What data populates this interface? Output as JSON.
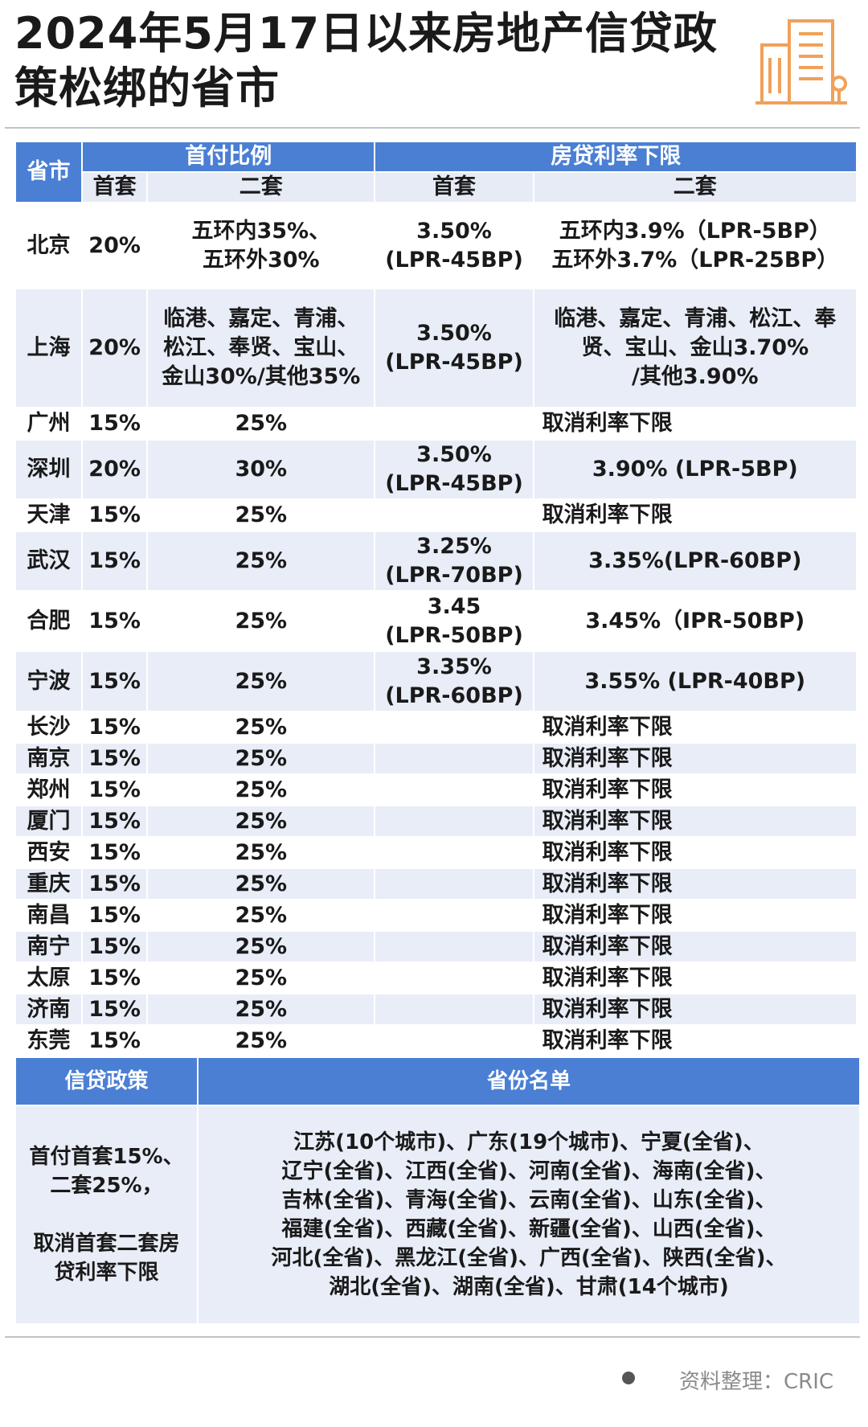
{
  "header": {
    "title": "2024年5月17日以来房地产信贷政策松绑的省市"
  },
  "table": {
    "headers": {
      "city": "省市",
      "down_payment": "首付比例",
      "rate_floor": "房贷利率下限",
      "first": "首套",
      "second": "二套",
      "first_rate": "首套",
      "second_rate": "二套"
    },
    "rows": [
      {
        "city": "北京",
        "dp1": "20%",
        "dp2": "五环内35%、\n五环外30%",
        "rate1": "3.50%\n(LPR-45BP)",
        "rate2": "五环内3.9%（LPR-5BP）\n五环外3.7%（LPR-25BP）"
      },
      {
        "city": "上海",
        "dp1": "20%",
        "dp2": "临港、嘉定、青浦、\n松江、奉贤、宝山、\n金山30%/其他35%",
        "rate1": "3.50%\n(LPR-45BP)",
        "rate2": "临港、嘉定、青浦、松江、奉\n贤、宝山、金山3.70%\n/其他3.90%"
      },
      {
        "city": "广州",
        "dp1": "15%",
        "dp2": "25%",
        "rate_note": "取消利率下限"
      },
      {
        "city": "深圳",
        "dp1": "20%",
        "dp2": "30%",
        "rate1": "3.50%\n(LPR-45BP)",
        "rate2": "3.90% (LPR-5BP)"
      },
      {
        "city": "天津",
        "dp1": "15%",
        "dp2": "25%",
        "rate_note": "取消利率下限"
      },
      {
        "city": "武汉",
        "dp1": "15%",
        "dp2": "25%",
        "rate1": "3.25%\n(LPR-70BP)",
        "rate2": "3.35%(LPR-60BP)"
      },
      {
        "city": "合肥",
        "dp1": "15%",
        "dp2": "25%",
        "rate1": "3.45\n(LPR-50BP)",
        "rate2": "3.45%（IPR-50BP)"
      },
      {
        "city": "宁波",
        "dp1": "15%",
        "dp2": "25%",
        "rate1": "3.35%\n(LPR-60BP)",
        "rate2": "3.55% (LPR-40BP)"
      },
      {
        "city": "长沙",
        "dp1": "15%",
        "dp2": "25%",
        "rate_note": "取消利率下限"
      },
      {
        "city": "南京",
        "dp1": "15%",
        "dp2": "25%",
        "rate_note": "取消利率下限"
      },
      {
        "city": "郑州",
        "dp1": "15%",
        "dp2": "25%",
        "rate_note": "取消利率下限"
      },
      {
        "city": "厦门",
        "dp1": "15%",
        "dp2": "25%",
        "rate_note": "取消利率下限"
      },
      {
        "city": "西安",
        "dp1": "15%",
        "dp2": "25%",
        "rate_note": "取消利率下限"
      },
      {
        "city": "重庆",
        "dp1": "15%",
        "dp2": "25%",
        "rate_note": "取消利率下限"
      },
      {
        "city": "南昌",
        "dp1": "15%",
        "dp2": "25%",
        "rate_note": "取消利率下限"
      },
      {
        "city": "南宁",
        "dp1": "15%",
        "dp2": "25%",
        "rate_note": "取消利率下限"
      },
      {
        "city": "太原",
        "dp1": "15%",
        "dp2": "25%",
        "rate_note": "取消利率下限"
      },
      {
        "city": "济南",
        "dp1": "15%",
        "dp2": "25%",
        "rate_note": "取消利率下限"
      },
      {
        "city": "东莞",
        "dp1": "15%",
        "dp2": "25%",
        "rate_note": "取消利率下限"
      }
    ]
  },
  "policy_table": {
    "headers": [
      "信贷政策",
      "省份名单"
    ],
    "policy": "首付首套15%、\n二套25%，\n\n取消首套二套房\n贷利率下限",
    "provinces": "江苏(10个城市)、广东(19个城市)、宁夏(全省)、\n辽宁(全省)、江西(全省)、河南(全省)、海南(全省)、\n吉林(全省)、青海(全省)、云南(全省)、山东(全省)、\n福建(全省)、西藏(全省)、新疆(全省)、山西(全省)、\n河北(全省)、黑龙江(全省)、广西(全省)、陕西(全省)、\n湖北(全省)、湖南(全省)、甘肃(14个城市)"
  },
  "footer": {
    "source": "资料整理：CRIC"
  }
}
